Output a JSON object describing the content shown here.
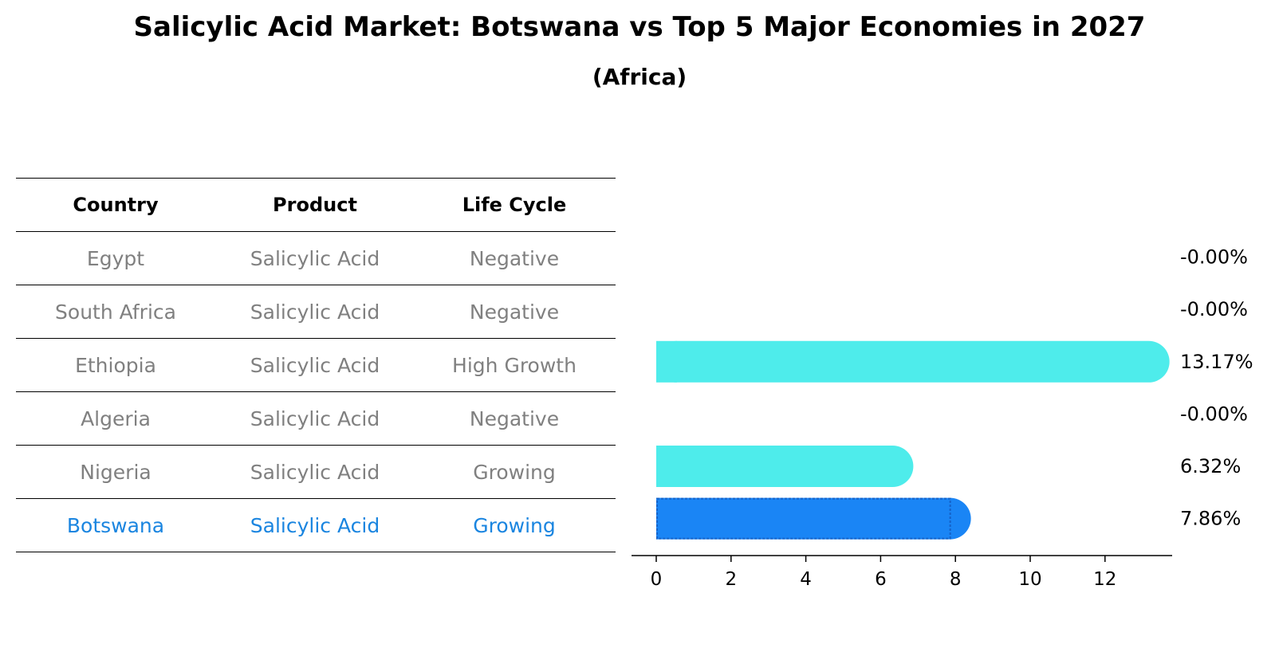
{
  "title": "Salicylic Acid Market: Botswana vs Top 5 Major Economies in 2027",
  "subtitle": "(Africa)",
  "table": {
    "headers": [
      "Country",
      "Product",
      "Life Cycle"
    ],
    "rows": [
      [
        "Egypt",
        "Salicylic Acid",
        "Negative"
      ],
      [
        "South Africa",
        "Salicylic Acid",
        "Negative"
      ],
      [
        "Ethiopia",
        "Salicylic Acid",
        "High Growth"
      ],
      [
        "Algeria",
        "Salicylic Acid",
        "Negative"
      ],
      [
        "Nigeria",
        "Salicylic Acid",
        "Growing"
      ],
      [
        "Botswana",
        "Salicylic Acid",
        "Growing"
      ]
    ],
    "highlight_row": 5
  },
  "colors": {
    "highlight": "#1a85e0",
    "bar": "#4eeceb",
    "highlight_bar": "#1a85f5",
    "muted_text": "#808080"
  },
  "chart_data": {
    "type": "bar",
    "orientation": "horizontal",
    "categories": [
      "Egypt",
      "South Africa",
      "Ethiopia",
      "Algeria",
      "Nigeria",
      "Botswana"
    ],
    "values": [
      -0.0,
      -0.0,
      13.17,
      -0.0,
      6.32,
      7.86
    ],
    "value_labels": [
      "-0.00%",
      "-0.00%",
      "13.17%",
      "-0.00%",
      "6.32%",
      "7.86%"
    ],
    "highlight_index": 5,
    "xlim": [
      -0.7,
      13.9
    ],
    "xticks": [
      0,
      2,
      4,
      6,
      8,
      10,
      12
    ],
    "grid": false
  }
}
